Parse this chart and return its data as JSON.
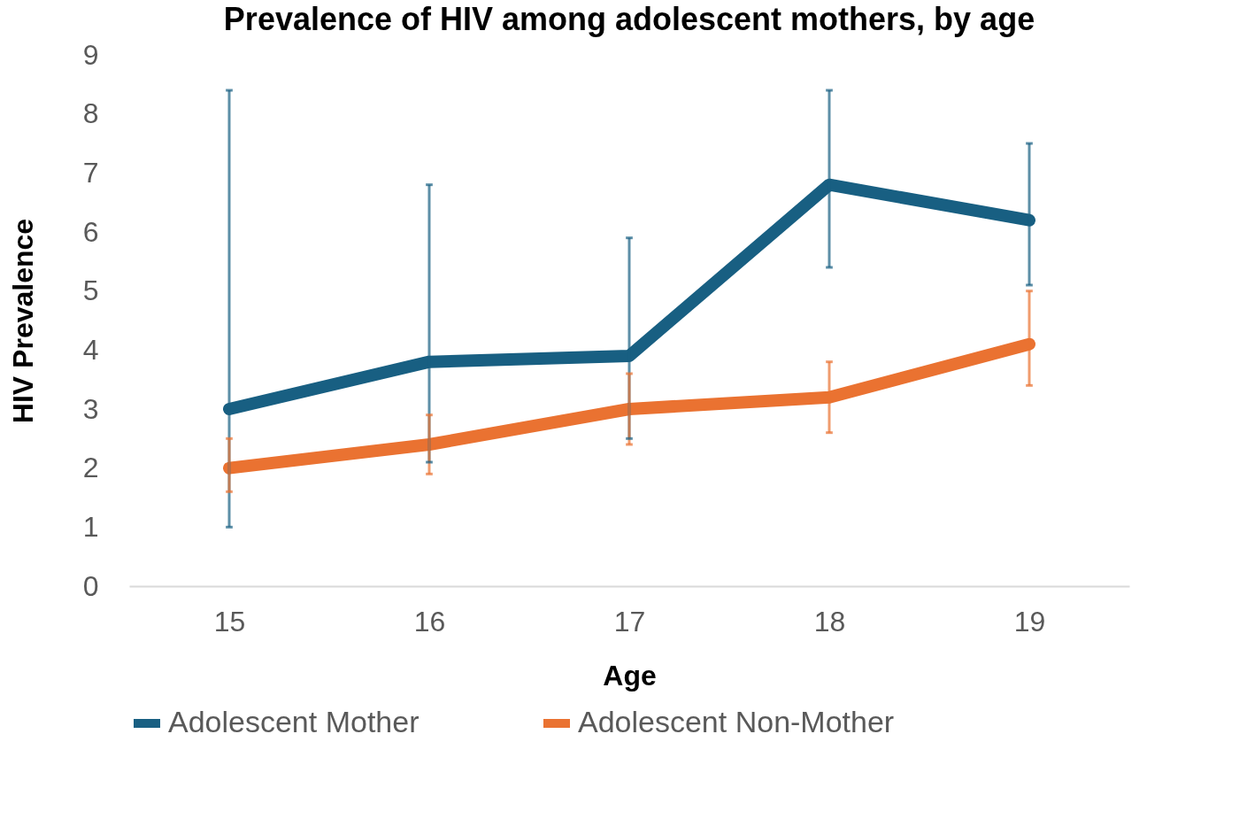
{
  "chart_data": {
    "type": "line",
    "title": "Prevalence of HIV among adolescent mothers, by age",
    "xlabel": "Age",
    "ylabel": "HIV Prevalence",
    "categories": [
      "15",
      "16",
      "17",
      "18",
      "19"
    ],
    "series": [
      {
        "name": "Adolescent Mother",
        "color": "#185f82",
        "values": [
          3.0,
          3.8,
          3.9,
          6.8,
          6.2
        ],
        "errors": [
          [
            1.0,
            8.4
          ],
          [
            2.1,
            6.8
          ],
          [
            2.5,
            5.9
          ],
          [
            5.4,
            8.4
          ],
          [
            5.1,
            7.5
          ]
        ]
      },
      {
        "name": "Adolescent Non-Mother",
        "color": "#ea7231",
        "values": [
          2.0,
          2.4,
          3.0,
          3.2,
          4.1
        ],
        "errors": [
          [
            1.6,
            2.5
          ],
          [
            1.9,
            2.9
          ],
          [
            2.4,
            3.6
          ],
          [
            2.6,
            3.8
          ],
          [
            3.4,
            5.0
          ]
        ]
      }
    ],
    "ylim": [
      0,
      9
    ],
    "yticks": [
      0,
      1,
      2,
      3,
      4,
      5,
      6,
      7,
      8,
      9
    ],
    "grid": false,
    "legend": "bottom"
  }
}
